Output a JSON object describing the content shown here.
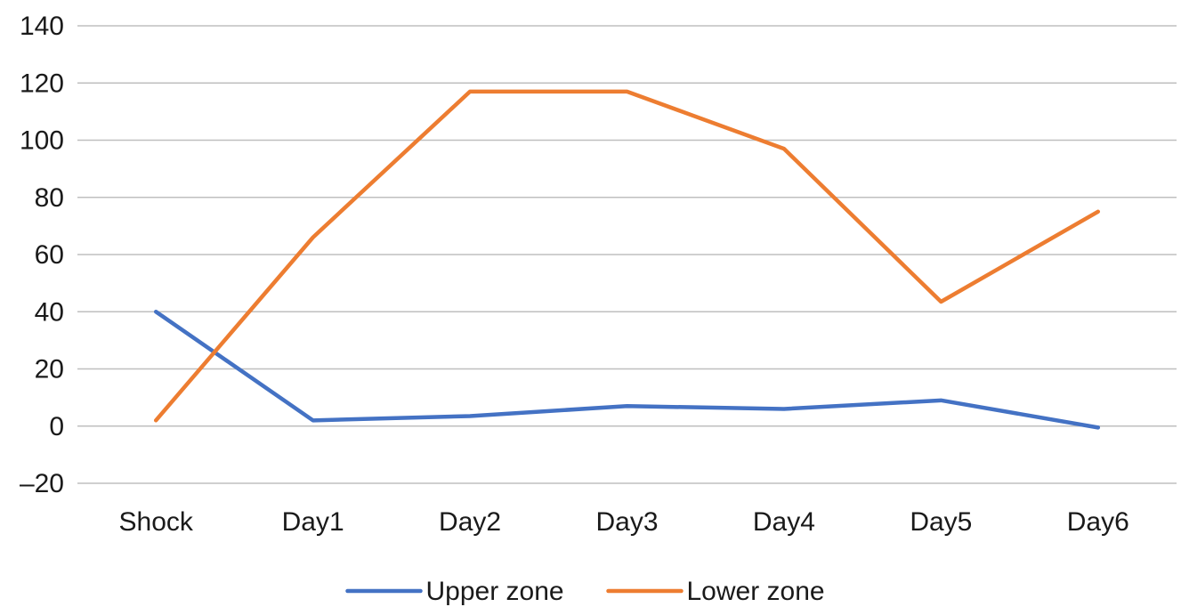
{
  "chart_data": {
    "type": "line",
    "categories": [
      "Shock",
      "Day1",
      "Day2",
      "Day3",
      "Day4",
      "Day5",
      "Day6"
    ],
    "series": [
      {
        "name": "Upper zone",
        "color": "#4472C4",
        "values": [
          40,
          2,
          3.5,
          7,
          6,
          9,
          -0.5
        ]
      },
      {
        "name": "Lower zone",
        "color": "#ED7D31",
        "values": [
          2,
          66,
          117,
          117,
          97,
          43.5,
          75
        ]
      }
    ],
    "ylim": [
      -20,
      140
    ],
    "yticks": [
      "140",
      "120",
      "100",
      "80",
      "60",
      "40",
      "20",
      "0",
      "–20"
    ],
    "ytick_values": [
      140,
      120,
      100,
      80,
      60,
      40,
      20,
      0,
      -20
    ],
    "grid": true,
    "legend_position": "bottom",
    "gridline_color": "#BFBFBF"
  }
}
